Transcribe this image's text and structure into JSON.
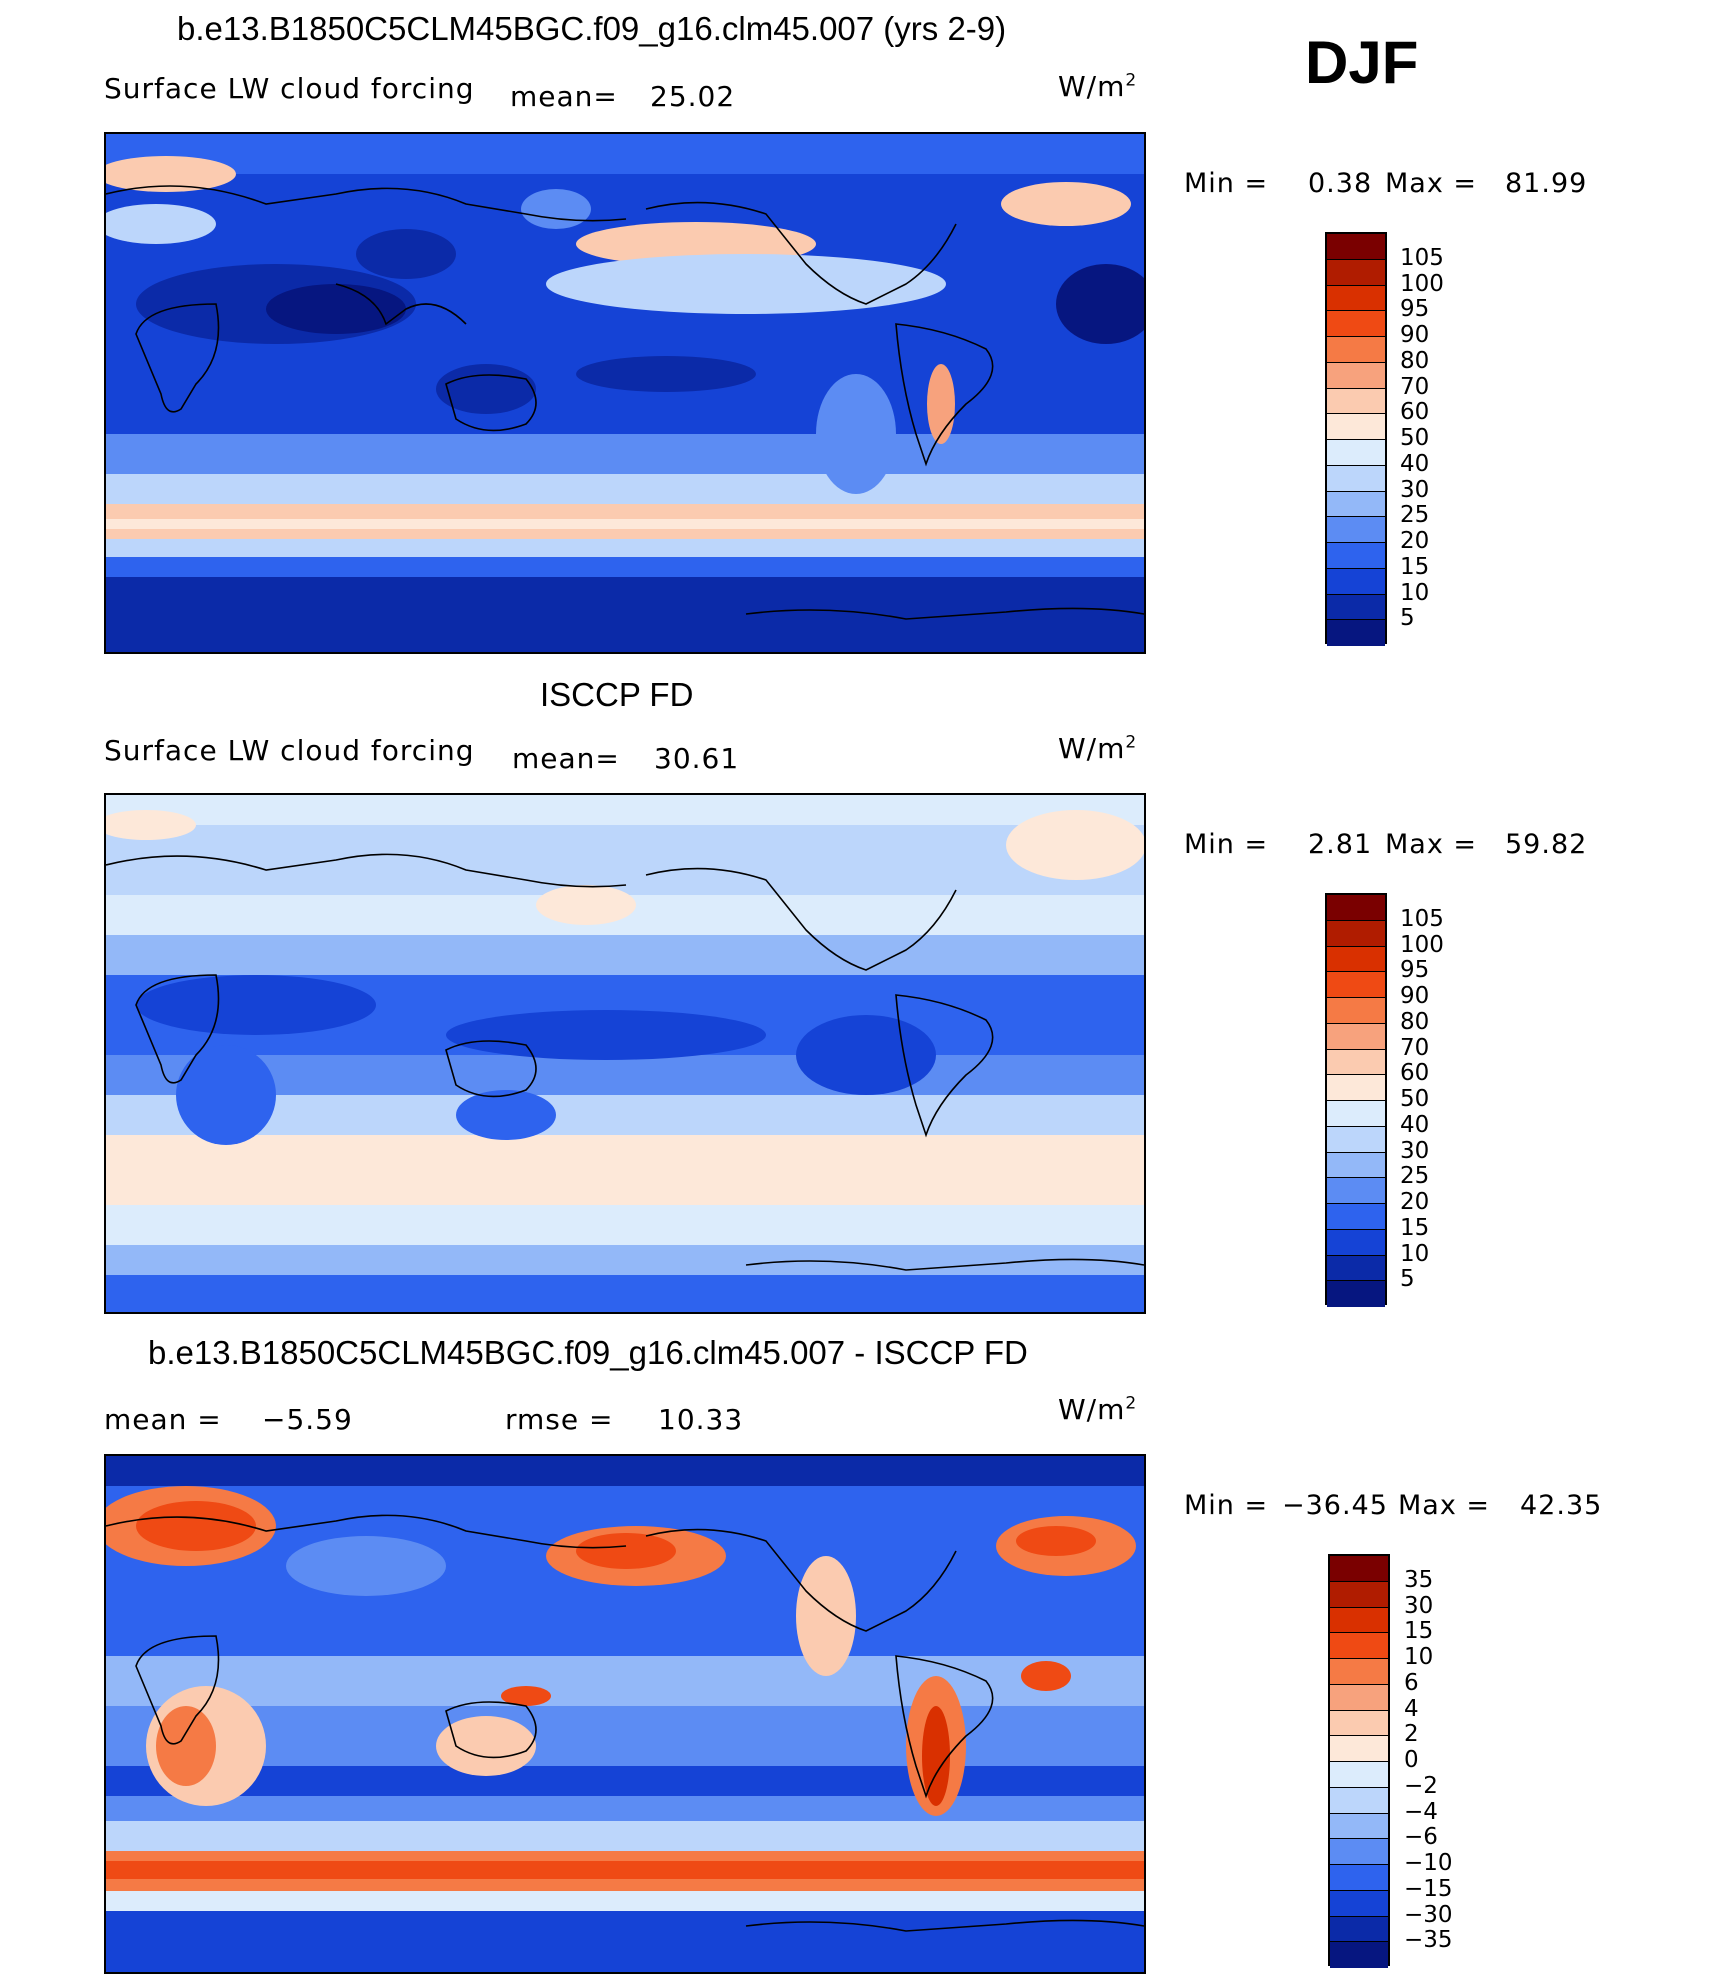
{
  "season": "DJF",
  "units_html": "W/m",
  "units_sup": "2",
  "panels": [
    {
      "title": "b.e13.B1850C5CLM45BGC.f09_g16.clm45.007 (yrs 2-9)",
      "variable": "Surface LW cloud forcing",
      "mean_label": "mean=",
      "mean_value": "25.02",
      "min_label": "Min =",
      "min_value": "0.38",
      "max_label": "Max =",
      "max_value": "81.99",
      "style": "model"
    },
    {
      "title": "ISCCP FD",
      "variable": "Surface LW cloud forcing",
      "mean_label": "mean=",
      "mean_value": "30.61",
      "min_label": "Min =",
      "min_value": "2.81",
      "max_label": "Max =",
      "max_value": "59.82",
      "style": "obs"
    },
    {
      "title": "b.e13.B1850C5CLM45BGC.f09_g16.clm45.007 - ISCCP FD",
      "mean_label": "mean =",
      "mean_value": "−5.59",
      "rmse_label": "rmse =",
      "rmse_value": "10.33",
      "min_label": "Min =",
      "min_value": "−36.45",
      "max_label": "Max =",
      "max_value": "42.35",
      "style": "diff"
    }
  ],
  "colorbar_abs": {
    "labels": [
      "105",
      "100",
      "95",
      "90",
      "80",
      "70",
      "60",
      "50",
      "40",
      "30",
      "25",
      "20",
      "15",
      "10",
      "5"
    ],
    "colors": [
      "#7a0000",
      "#b01c00",
      "#d93000",
      "#ef4a14",
      "#f57a45",
      "#f7a27d",
      "#fbcbb0",
      "#fde8d9",
      "#dcecfc",
      "#bcd6fb",
      "#93b8f8",
      "#5c8cf3",
      "#2e63ee",
      "#1543d6",
      "#0b2aa8",
      "#061680"
    ]
  },
  "colorbar_diff": {
    "labels": [
      "35",
      "30",
      "15",
      "10",
      "6",
      "4",
      "2",
      "0",
      "−2",
      "−4",
      "−6",
      "−10",
      "−15",
      "−30",
      "−35"
    ],
    "colors": [
      "#7a0000",
      "#b01c00",
      "#d93000",
      "#ef4a14",
      "#f57a45",
      "#f7a27d",
      "#fbcbb0",
      "#fde8d9",
      "#dcecfc",
      "#bcd6fb",
      "#93b8f8",
      "#5c8cf3",
      "#2e63ee",
      "#1543d6",
      "#0b2aa8",
      "#061680"
    ]
  }
}
